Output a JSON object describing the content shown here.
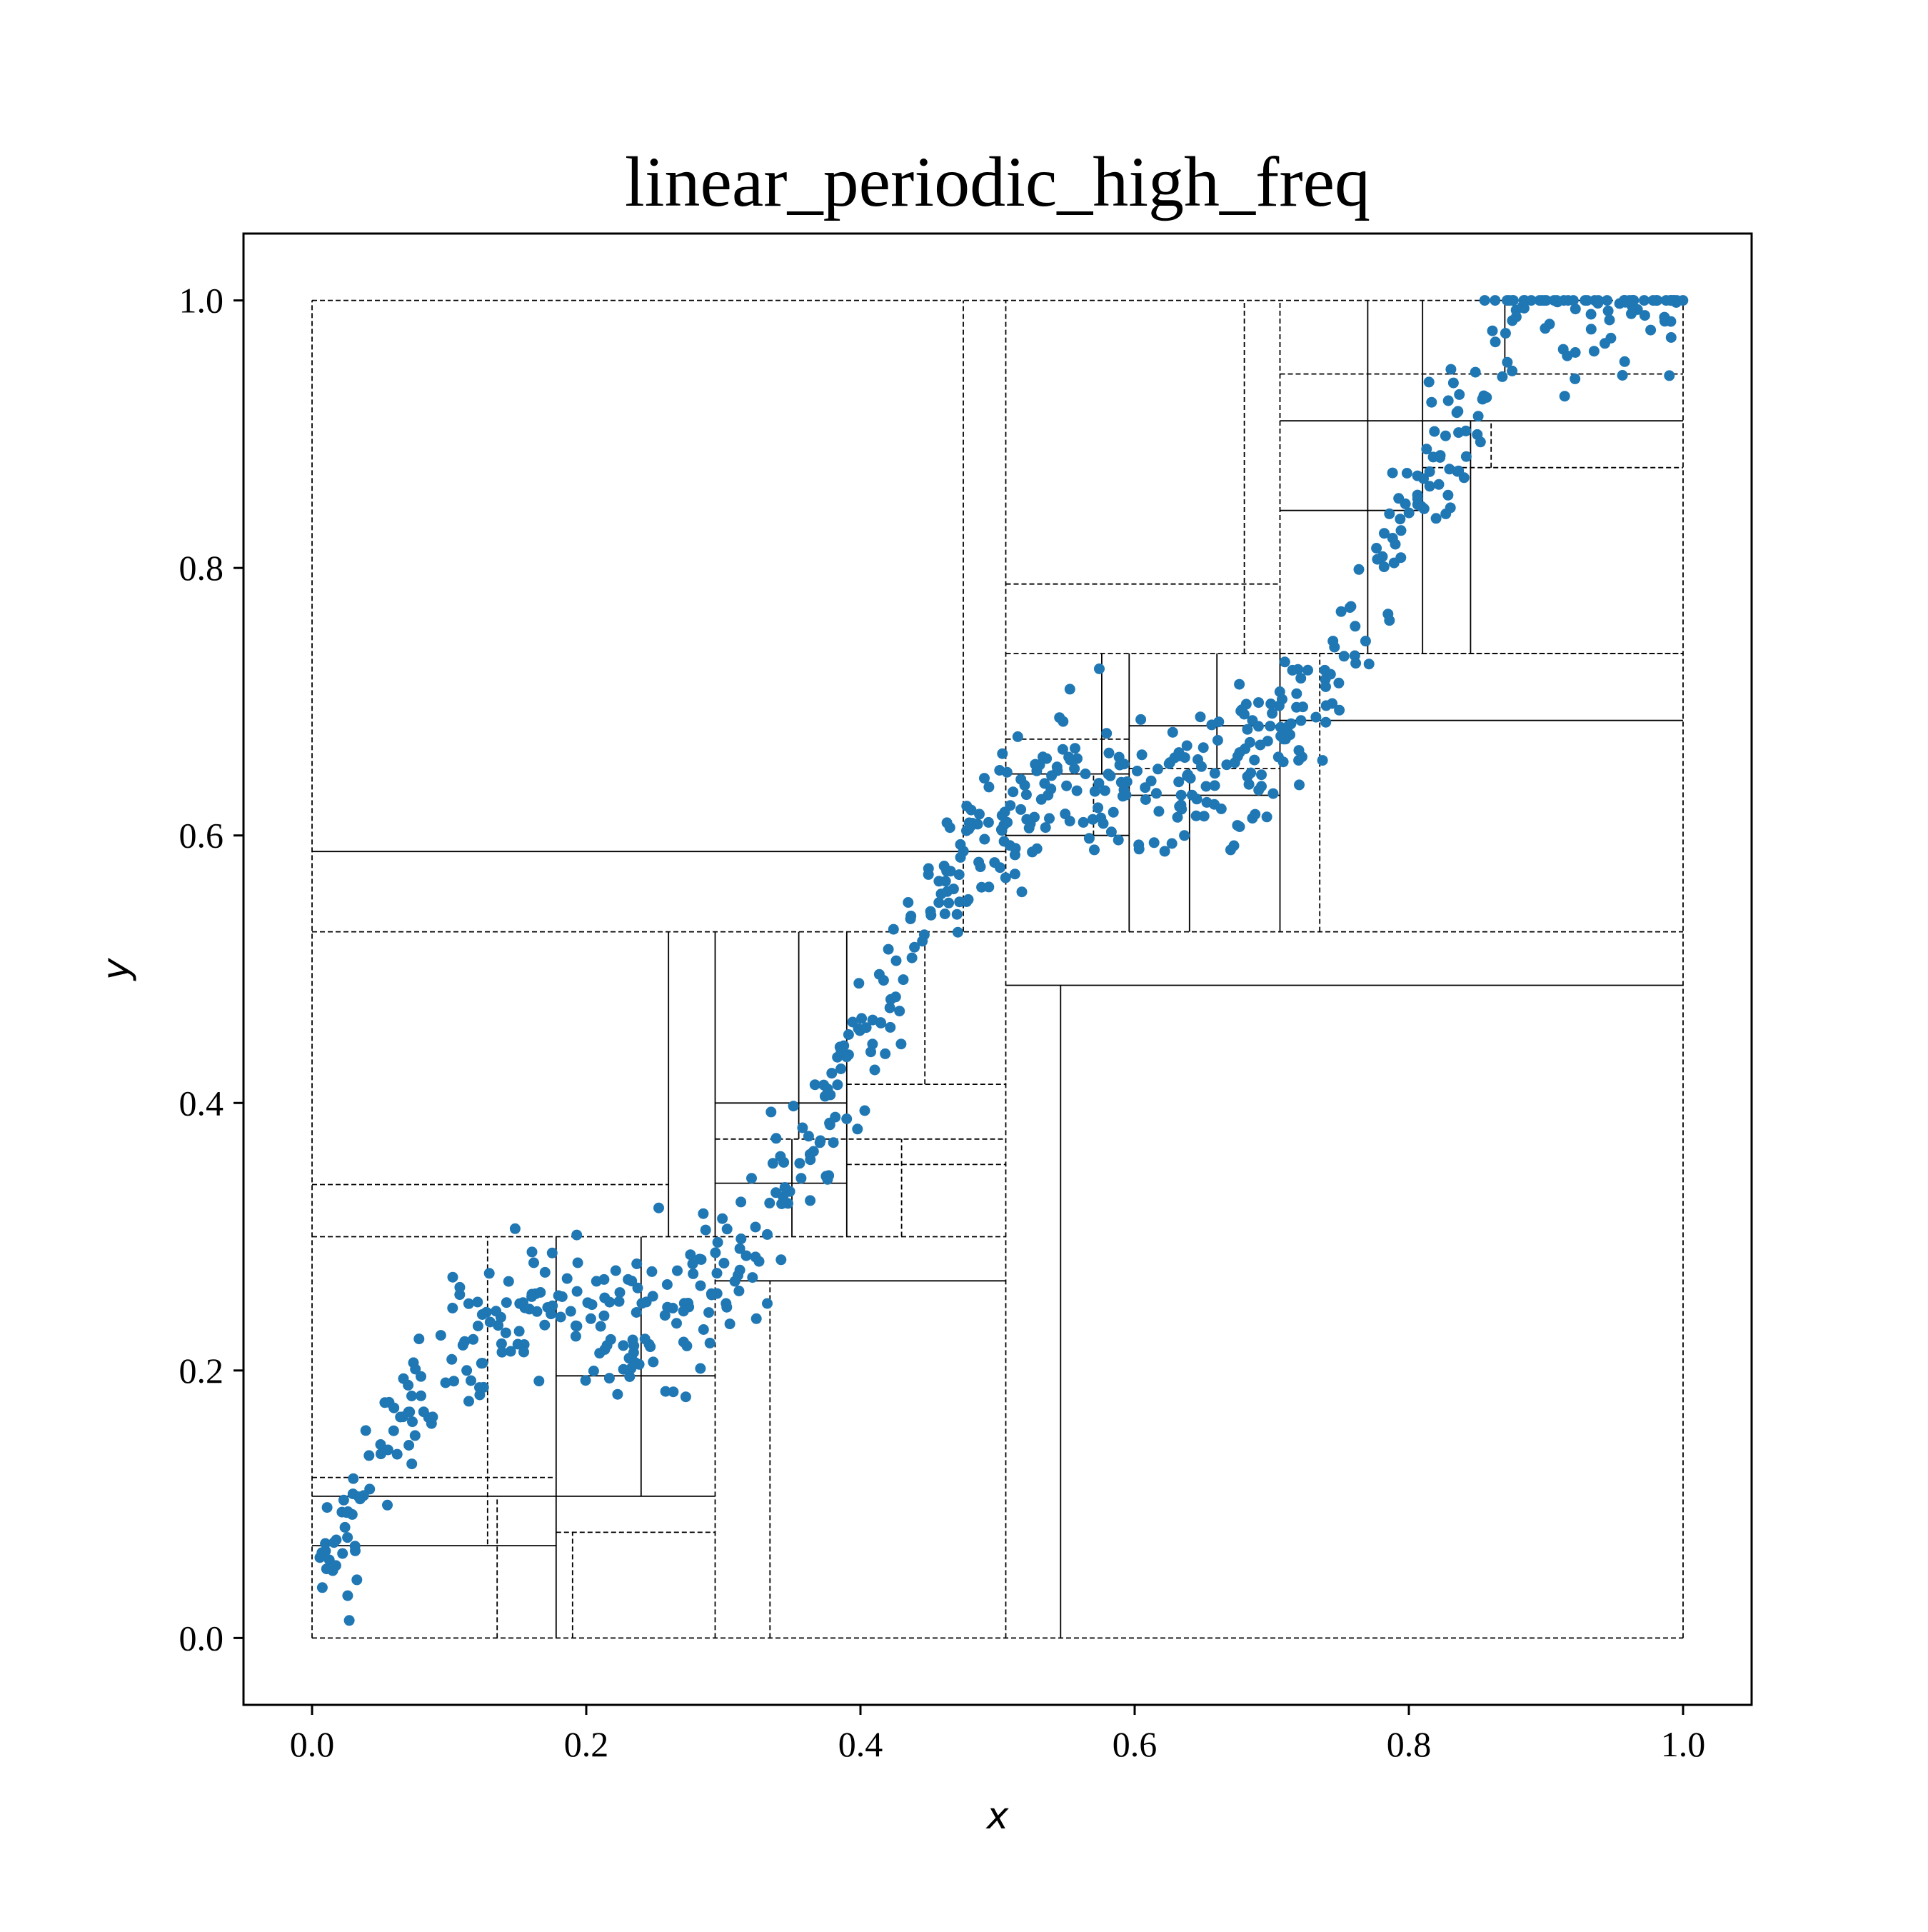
{
  "chart_data": {
    "type": "scatter",
    "title": "linear_periodic_high_freq",
    "xlabel": "x",
    "ylabel": "y",
    "xlim": [
      -0.05,
      1.05
    ],
    "ylim": [
      -0.05,
      1.05
    ],
    "xticks": [
      "0.0",
      "0.2",
      "0.4",
      "0.6",
      "0.8",
      "1.0"
    ],
    "yticks": [
      "0.0",
      "0.2",
      "0.4",
      "0.6",
      "0.8",
      "1.0"
    ],
    "grid": false,
    "legend": "none",
    "point_color": "#1f77b4",
    "line_color": "#000000",
    "partition_lines": [
      {
        "style": "dashed",
        "x1": 0,
        "y1": 0,
        "x2": 1,
        "y2": 0
      },
      {
        "style": "dashed",
        "x1": 0,
        "y1": 1,
        "x2": 1,
        "y2": 1
      },
      {
        "style": "dashed",
        "x1": 0,
        "y1": 0,
        "x2": 0,
        "y2": 1
      },
      {
        "style": "dashed",
        "x1": 1,
        "y1": 0,
        "x2": 1,
        "y2": 1
      },
      {
        "style": "dashed",
        "x1": 0,
        "y1": 0.528,
        "x2": 1,
        "y2": 0.528
      },
      {
        "style": "dashed",
        "x1": 0.506,
        "y1": 0,
        "x2": 0.506,
        "y2": 0.528
      },
      {
        "style": "solid",
        "x1": 0.506,
        "y1": 0.488,
        "x2": 1,
        "y2": 0.488
      },
      {
        "style": "solid",
        "x1": 0.546,
        "y1": 0,
        "x2": 0.546,
        "y2": 0.488
      },
      {
        "style": "dashed",
        "x1": 0,
        "y1": 0.3,
        "x2": 0.506,
        "y2": 0.3
      },
      {
        "style": "dashed",
        "x1": 0,
        "y1": 0.339,
        "x2": 0.26,
        "y2": 0.339
      },
      {
        "style": "solid",
        "x1": 0.26,
        "y1": 0.3,
        "x2": 0.26,
        "y2": 0.528
      },
      {
        "style": "solid",
        "x1": 0.294,
        "y1": 0.3,
        "x2": 0.294,
        "y2": 0.528
      },
      {
        "style": "dashed",
        "x1": 0.294,
        "y1": 0.373,
        "x2": 0.506,
        "y2": 0.373
      },
      {
        "style": "solid",
        "x1": 0.294,
        "y1": 0.4,
        "x2": 0.39,
        "y2": 0.4
      },
      {
        "style": "solid",
        "x1": 0.355,
        "y1": 0.373,
        "x2": 0.355,
        "y2": 0.528
      },
      {
        "style": "solid",
        "x1": 0.39,
        "y1": 0.3,
        "x2": 0.39,
        "y2": 0.528
      },
      {
        "style": "dashed",
        "x1": 0.447,
        "y1": 0.414,
        "x2": 0.447,
        "y2": 0.528
      },
      {
        "style": "dashed",
        "x1": 0.39,
        "y1": 0.414,
        "x2": 0.506,
        "y2": 0.414
      },
      {
        "style": "solid",
        "x1": 0.294,
        "y1": 0.34,
        "x2": 0.39,
        "y2": 0.34
      },
      {
        "style": "solid",
        "x1": 0.35,
        "y1": 0.3,
        "x2": 0.35,
        "y2": 0.373
      },
      {
        "style": "dashed",
        "x1": 0.43,
        "y1": 0.3,
        "x2": 0.43,
        "y2": 0.373
      },
      {
        "style": "dashed",
        "x1": 0.39,
        "y1": 0.354,
        "x2": 0.506,
        "y2": 0.354
      },
      {
        "style": "solid",
        "x1": 0.294,
        "y1": 0.267,
        "x2": 0.506,
        "y2": 0.267
      },
      {
        "style": "dashed",
        "x1": 0.294,
        "y1": 0,
        "x2": 0.294,
        "y2": 0.3
      },
      {
        "style": "dashed",
        "x1": 0.334,
        "y1": 0,
        "x2": 0.334,
        "y2": 0.267
      },
      {
        "style": "solid",
        "x1": 0.178,
        "y1": 0,
        "x2": 0.178,
        "y2": 0.3
      },
      {
        "style": "dashed",
        "x1": 0.128,
        "y1": 0.07,
        "x2": 0.128,
        "y2": 0.3
      },
      {
        "style": "dashed",
        "x1": 0,
        "y1": 0.12,
        "x2": 0.178,
        "y2": 0.12
      },
      {
        "style": "solid",
        "x1": 0,
        "y1": 0.106,
        "x2": 0.294,
        "y2": 0.106
      },
      {
        "style": "solid",
        "x1": 0,
        "y1": 0.069,
        "x2": 0.178,
        "y2": 0.069
      },
      {
        "style": "dashed",
        "x1": 0.135,
        "y1": 0,
        "x2": 0.135,
        "y2": 0.106
      },
      {
        "style": "dashed",
        "x1": 0.178,
        "y1": 0.079,
        "x2": 0.294,
        "y2": 0.079
      },
      {
        "style": "dashed",
        "x1": 0.19,
        "y1": 0,
        "x2": 0.19,
        "y2": 0.079
      },
      {
        "style": "solid",
        "x1": 0.178,
        "y1": 0.196,
        "x2": 0.294,
        "y2": 0.196
      },
      {
        "style": "solid",
        "x1": 0.24,
        "y1": 0.106,
        "x2": 0.24,
        "y2": 0.3
      },
      {
        "style": "solid",
        "x1": 0,
        "y1": 0.588,
        "x2": 0.506,
        "y2": 0.588
      },
      {
        "style": "dashed",
        "x1": 0.475,
        "y1": 0.528,
        "x2": 0.475,
        "y2": 1
      },
      {
        "style": "dashed",
        "x1": 0.506,
        "y1": 0.528,
        "x2": 0.506,
        "y2": 1
      },
      {
        "style": "dashed",
        "x1": 0.506,
        "y1": 0.788,
        "x2": 0.706,
        "y2": 0.788
      },
      {
        "style": "dashed",
        "x1": 0.506,
        "y1": 0.736,
        "x2": 1,
        "y2": 0.736
      },
      {
        "style": "dashed",
        "x1": 0.68,
        "y1": 0.736,
        "x2": 0.68,
        "y2": 1
      },
      {
        "style": "dashed",
        "x1": 0.706,
        "y1": 0.736,
        "x2": 0.706,
        "y2": 1
      },
      {
        "style": "solid",
        "x1": 0.706,
        "y1": 0.686,
        "x2": 1,
        "y2": 0.686
      },
      {
        "style": "solid",
        "x1": 0.706,
        "y1": 0.528,
        "x2": 0.706,
        "y2": 0.736
      },
      {
        "style": "dashed",
        "x1": 0.735,
        "y1": 0.528,
        "x2": 0.735,
        "y2": 0.736
      },
      {
        "style": "solid",
        "x1": 0.596,
        "y1": 0.528,
        "x2": 0.596,
        "y2": 0.736
      },
      {
        "style": "solid",
        "x1": 0.506,
        "y1": 0.6,
        "x2": 0.596,
        "y2": 0.6
      },
      {
        "style": "solid",
        "x1": 0.506,
        "y1": 0.646,
        "x2": 0.596,
        "y2": 0.646
      },
      {
        "style": "dashed",
        "x1": 0.506,
        "y1": 0.672,
        "x2": 0.596,
        "y2": 0.672
      },
      {
        "style": "solid",
        "x1": 0.576,
        "y1": 0.646,
        "x2": 0.576,
        "y2": 0.736
      },
      {
        "style": "dashed",
        "x1": 0.57,
        "y1": 0.6,
        "x2": 0.57,
        "y2": 0.646
      },
      {
        "style": "solid",
        "x1": 0.64,
        "y1": 0.528,
        "x2": 0.64,
        "y2": 0.65
      },
      {
        "style": "solid",
        "x1": 0.596,
        "y1": 0.63,
        "x2": 0.706,
        "y2": 0.63
      },
      {
        "style": "dashed",
        "x1": 0.596,
        "y1": 0.65,
        "x2": 0.706,
        "y2": 0.65
      },
      {
        "style": "solid",
        "x1": 0.596,
        "y1": 0.682,
        "x2": 0.706,
        "y2": 0.682
      },
      {
        "style": "solid",
        "x1": 0.66,
        "y1": 0.65,
        "x2": 0.66,
        "y2": 0.736
      },
      {
        "style": "dashed",
        "x1": 0.706,
        "y1": 0.736,
        "x2": 1,
        "y2": 0.736
      },
      {
        "style": "solid",
        "x1": 0.706,
        "y1": 0.91,
        "x2": 1,
        "y2": 0.91
      },
      {
        "style": "dashed",
        "x1": 0.706,
        "y1": 0.945,
        "x2": 1,
        "y2": 0.945
      },
      {
        "style": "solid",
        "x1": 0.706,
        "y1": 0.843,
        "x2": 0.81,
        "y2": 0.843
      },
      {
        "style": "solid",
        "x1": 0.77,
        "y1": 0.736,
        "x2": 0.77,
        "y2": 0.91
      },
      {
        "style": "solid",
        "x1": 0.81,
        "y1": 0.736,
        "x2": 0.81,
        "y2": 0.945
      },
      {
        "style": "dashed",
        "x1": 0.81,
        "y1": 0.875,
        "x2": 1,
        "y2": 0.875
      },
      {
        "style": "solid",
        "x1": 0.845,
        "y1": 0.736,
        "x2": 0.845,
        "y2": 0.91
      },
      {
        "style": "dashed",
        "x1": 0.86,
        "y1": 0.875,
        "x2": 0.86,
        "y2": 0.91
      },
      {
        "style": "solid",
        "x1": 0.77,
        "y1": 0.91,
        "x2": 0.77,
        "y2": 1
      },
      {
        "style": "solid",
        "x1": 0.81,
        "y1": 0.945,
        "x2": 0.81,
        "y2": 1
      },
      {
        "style": "solid",
        "x1": 0.87,
        "y1": 0.945,
        "x2": 0.87,
        "y2": 1
      }
    ]
  }
}
